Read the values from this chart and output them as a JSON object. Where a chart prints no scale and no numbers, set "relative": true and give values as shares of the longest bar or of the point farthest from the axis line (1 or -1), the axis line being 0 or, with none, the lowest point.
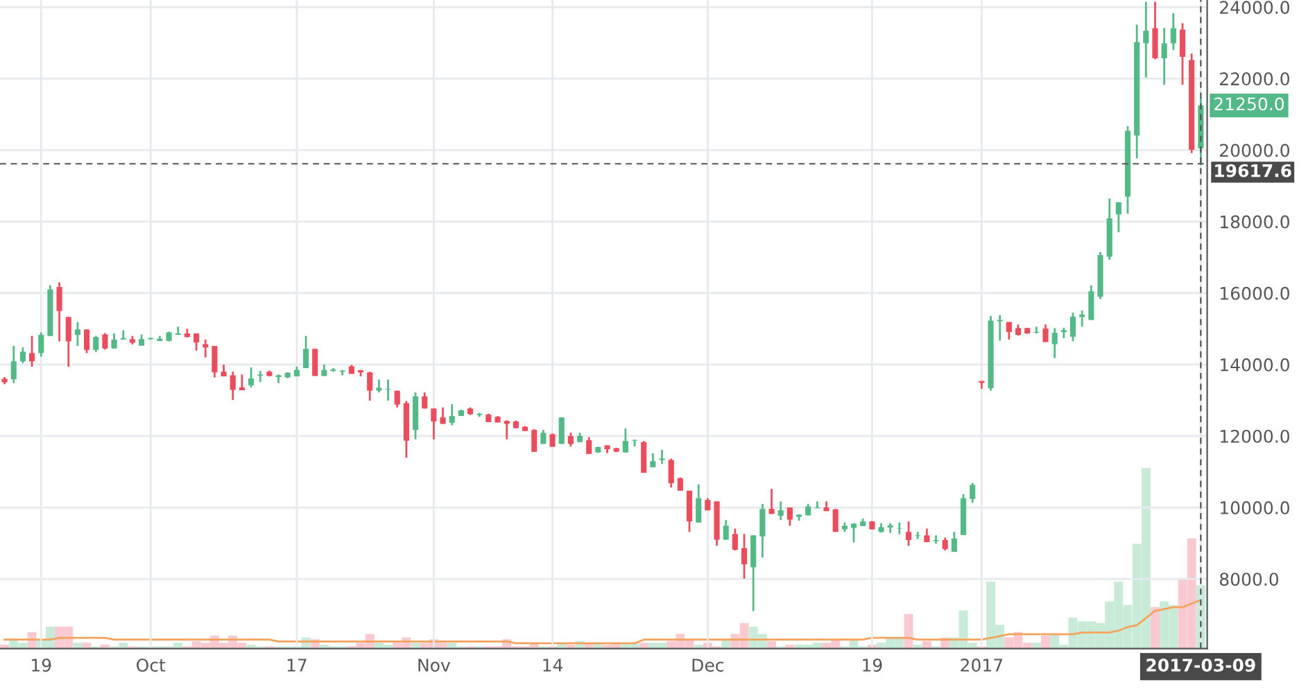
{
  "chart_data": [
    {
      "type": "candlestick",
      "categories": [
        null,
        null,
        null,
        null,
        "19",
        null,
        null,
        null,
        null,
        null,
        null,
        null,
        null,
        null,
        null,
        null,
        "Oct",
        null,
        null,
        null,
        null,
        null,
        null,
        null,
        null,
        null,
        null,
        null,
        null,
        null,
        null,
        null,
        "17",
        null,
        null,
        null,
        null,
        null,
        null,
        null,
        null,
        null,
        null,
        null,
        null,
        null,
        null,
        "Nov",
        null,
        null,
        null,
        null,
        null,
        null,
        null,
        null,
        null,
        null,
        null,
        null,
        "14",
        null,
        null,
        null,
        null,
        null,
        null,
        null,
        null,
        null,
        null,
        null,
        null,
        null,
        null,
        null,
        null,
        "Dec",
        null,
        null,
        null,
        null,
        null,
        null,
        null,
        null,
        null,
        null,
        null,
        null,
        null,
        null,
        null,
        null,
        null,
        "19",
        null,
        null,
        null,
        null,
        null,
        null,
        null,
        null,
        null,
        null,
        null,
        "2017",
        null,
        null,
        null,
        null,
        null,
        null,
        null,
        null,
        null,
        null,
        null,
        null,
        null,
        null,
        null,
        null,
        null,
        null,
        null,
        null,
        null,
        null,
        null,
        "2017-03-09"
      ],
      "ylim": [
        6050,
        24200
      ],
      "yticks": [
        {
          "value": 8000,
          "label": "8000.0"
        },
        {
          "value": 10000,
          "label": "10000.0"
        },
        {
          "value": 12000,
          "label": "12000.0"
        },
        {
          "value": 14000,
          "label": "14000.0"
        },
        {
          "value": 16000,
          "label": "16000.0"
        },
        {
          "value": 18000,
          "label": "18000.0"
        },
        {
          "value": 20000,
          "label": "20000.0"
        },
        {
          "value": 22000,
          "label": "22000.0"
        },
        {
          "value": 24000,
          "label": "24000.0"
        }
      ],
      "grid": true,
      "ref_lines": [
        {
          "axis": "y",
          "value": 19617.6,
          "label": "19617.6",
          "line_style": "dashed",
          "color": "#555555"
        },
        {
          "axis": "x",
          "value": "2017-03-09",
          "label": null,
          "line_style": "dashed",
          "color": "#555555"
        }
      ],
      "annotations": [
        {
          "text": "21250.0",
          "x": "2017-03-09",
          "y": 21250
        }
      ],
      "series": [
        {
          "ohlc": [
            [
              13600,
              13650,
              13450,
              13500
            ],
            [
              13590,
              14520,
              13480,
              14090
            ],
            [
              14090,
              14480,
              14040,
              14360
            ],
            [
              14320,
              14800,
              13940,
              14090
            ],
            [
              14320,
              14900,
              14220,
              14830
            ],
            [
              14800,
              16220,
              14800,
              16100
            ],
            [
              16170,
              16300,
              14650,
              15500
            ],
            [
              15330,
              15330,
              13940,
              14650
            ],
            [
              14830,
              15190,
              14520,
              14980
            ],
            [
              14980,
              14980,
              14320,
              14410
            ],
            [
              14410,
              14800,
              14350,
              14770
            ],
            [
              14840,
              14880,
              14420,
              14450
            ],
            [
              14450,
              14870,
              14450,
              14700
            ],
            [
              14700,
              14960,
              14700,
              14740
            ],
            [
              14710,
              14800,
              14560,
              14610
            ],
            [
              14530,
              14840,
              14530,
              14710
            ],
            [
              14710,
              14750,
              14700,
              14740
            ],
            [
              14660,
              14800,
              14660,
              14720
            ],
            [
              14660,
              14920,
              14650,
              14900
            ],
            [
              14830,
              15060,
              14830,
              14870
            ],
            [
              14870,
              15000,
              14760,
              14770
            ],
            [
              14870,
              14870,
              14390,
              14620
            ],
            [
              14570,
              14700,
              14200,
              14480
            ],
            [
              14520,
              14520,
              13640,
              13780
            ],
            [
              13800,
              14000,
              13670,
              13670
            ],
            [
              13700,
              13800,
              13010,
              13290
            ],
            [
              13360,
              13720,
              13280,
              13280
            ],
            [
              13420,
              13920,
              13360,
              13610
            ],
            [
              13690,
              13820,
              13510,
              13720
            ],
            [
              13800,
              13830,
              13670,
              13680
            ],
            [
              13650,
              13720,
              13480,
              13700
            ],
            [
              13640,
              13780,
              13620,
              13770
            ],
            [
              13670,
              13940,
              13670,
              13850
            ],
            [
              13900,
              14800,
              13900,
              14440
            ],
            [
              14440,
              14440,
              13680,
              13680
            ],
            [
              13680,
              14000,
              13680,
              13850
            ],
            [
              13820,
              13900,
              13800,
              13860
            ],
            [
              13800,
              13850,
              13700,
              13830
            ],
            [
              13950,
              13990,
              13740,
              13740
            ],
            [
              13840,
              13850,
              13670,
              13780
            ],
            [
              13780,
              13800,
              12990,
              13270
            ],
            [
              13270,
              13580,
              13220,
              13350
            ],
            [
              13300,
              13580,
              12990,
              13320
            ],
            [
              13270,
              13270,
              12800,
              12880
            ],
            [
              12920,
              12980,
              11390,
              11870
            ],
            [
              12170,
              13220,
              11910,
              13110
            ],
            [
              13110,
              13220,
              12770,
              12770
            ],
            [
              12770,
              12770,
              11910,
              12410
            ],
            [
              12520,
              12800,
              12340,
              12340
            ],
            [
              12370,
              12890,
              12300,
              12560
            ],
            [
              12560,
              12740,
              12560,
              12720
            ],
            [
              12770,
              12800,
              12590,
              12610
            ],
            [
              12590,
              12650,
              12540,
              12620
            ],
            [
              12600,
              12620,
              12390,
              12390
            ],
            [
              12540,
              12560,
              12380,
              12380
            ],
            [
              12420,
              12440,
              11910,
              12340
            ],
            [
              12410,
              12430,
              12220,
              12220
            ],
            [
              12260,
              12280,
              12140,
              12140
            ],
            [
              12170,
              12190,
              11560,
              11560
            ],
            [
              11780,
              12170,
              11780,
              12090
            ],
            [
              12050,
              12070,
              11700,
              11700
            ],
            [
              11780,
              12520,
              11780,
              12520
            ],
            [
              12000,
              12090,
              11710,
              11780
            ],
            [
              11830,
              12090,
              11830,
              12000
            ],
            [
              11880,
              11970,
              11500,
              11500
            ],
            [
              11540,
              11700,
              11530,
              11690
            ],
            [
              11740,
              11740,
              11520,
              11630
            ],
            [
              11660,
              11670,
              11550,
              11560
            ],
            [
              11540,
              12210,
              11540,
              11860
            ],
            [
              11870,
              11900,
              11710,
              11890
            ],
            [
              11830,
              11860,
              10970,
              10970
            ],
            [
              11125,
              11520,
              11125,
              11295
            ],
            [
              11330,
              11610,
              11220,
              11370
            ],
            [
              11330,
              11370,
              10560,
              10680
            ],
            [
              10820,
              10840,
              10470,
              10470
            ],
            [
              10470,
              10470,
              9320,
              9610
            ],
            [
              9580,
              10650,
              9580,
              10260
            ],
            [
              10210,
              10260,
              9920,
              9920
            ],
            [
              10170,
              10170,
              8930,
              9100
            ],
            [
              9100,
              9650,
              9100,
              9490
            ],
            [
              9260,
              9410,
              8800,
              8820
            ],
            [
              8860,
              9260,
              8010,
              8410
            ],
            [
              8330,
              9220,
              7100,
              9220
            ],
            [
              9190,
              10100,
              8600,
              9960
            ],
            [
              9960,
              10520,
              9820,
              9820
            ],
            [
              9770,
              10170,
              9650,
              9920
            ],
            [
              10000,
              10000,
              9490,
              9660
            ],
            [
              9740,
              9810,
              9630,
              9800
            ],
            [
              9780,
              10100,
              9780,
              10030
            ],
            [
              9980,
              10170,
              9980,
              10000
            ],
            [
              10000,
              10170,
              9900,
              9900
            ],
            [
              9950,
              9960,
              9320,
              9320
            ],
            [
              9390,
              9580,
              9320,
              9490
            ],
            [
              9430,
              9560,
              9020,
              9550
            ],
            [
              9480,
              9690,
              9480,
              9610
            ],
            [
              9610,
              9620,
              9380,
              9390
            ],
            [
              9320,
              9560,
              9300,
              9450
            ],
            [
              9440,
              9560,
              9290,
              9500
            ],
            [
              9400,
              9580,
              9250,
              9410
            ],
            [
              9320,
              9610,
              8930,
              9090
            ],
            [
              9200,
              9320,
              9120,
              9220
            ],
            [
              9220,
              9410,
              9030,
              9030
            ],
            [
              9060,
              9220,
              8990,
              9090
            ],
            [
              9090,
              9160,
              8800,
              8840
            ],
            [
              8760,
              9320,
              8760,
              9130
            ],
            [
              9230,
              10370,
              9230,
              10260
            ],
            [
              10240,
              10690,
              10130,
              10630
            ],
            [
              13540,
              13540,
              13320,
              13490
            ],
            [
              13340,
              15360,
              13270,
              15230
            ],
            [
              15210,
              15380,
              14670,
              15250
            ],
            [
              15190,
              15190,
              14700,
              14910
            ],
            [
              15020,
              15120,
              14810,
              14830
            ],
            [
              15020,
              15030,
              14860,
              14870
            ],
            [
              14890,
              15060,
              14870,
              14910
            ],
            [
              15010,
              15120,
              14630,
              14630
            ],
            [
              14570,
              15020,
              14180,
              14890
            ],
            [
              14910,
              15030,
              14740,
              14960
            ],
            [
              14780,
              15450,
              14650,
              15340
            ],
            [
              15330,
              15510,
              15060,
              15400
            ],
            [
              15250,
              16220,
              15250,
              16050
            ],
            [
              15900,
              17150,
              15830,
              17060
            ],
            [
              17020,
              18650,
              16930,
              18090
            ],
            [
              18200,
              18540,
              17700,
              18540
            ],
            [
              18700,
              20670,
              18220,
              20540
            ],
            [
              20410,
              23510,
              19770,
              23020
            ],
            [
              22990,
              24150,
              22030,
              23340
            ],
            [
              23410,
              24150,
              22540,
              22570
            ],
            [
              22570,
              23420,
              21830,
              22990
            ],
            [
              22990,
              23830,
              22800,
              23410
            ],
            [
              23370,
              23550,
              21830,
              22610
            ],
            [
              22520,
              22700,
              19920,
              20010
            ],
            [
              20050,
              21450,
              19580,
              21250
            ]
          ],
          "colors": [
            "#eb4d5c",
            "#53b987",
            "#53b987",
            "#eb4d5c",
            "#53b987",
            "#53b987",
            "#eb4d5c",
            "#eb4d5c",
            "#53b987",
            "#eb4d5c",
            "#53b987",
            "#eb4d5c",
            "#53b987",
            "#53b987",
            "#eb4d5c",
            "#53b987",
            "#53b987",
            "#53b987",
            "#53b987",
            "#53b987",
            "#eb4d5c",
            "#eb4d5c",
            "#eb4d5c",
            "#eb4d5c",
            "#eb4d5c",
            "#eb4d5c",
            "#eb4d5c",
            "#53b987",
            "#53b987",
            "#eb4d5c",
            "#53b987",
            "#53b987",
            "#53b987",
            "#53b987",
            "#eb4d5c",
            "#53b987",
            "#53b987",
            "#53b987",
            "#eb4d5c",
            "#eb4d5c",
            "#eb4d5c",
            "#53b987",
            "#53b987",
            "#eb4d5c",
            "#eb4d5c",
            "#53b987",
            "#eb4d5c",
            "#eb4d5c",
            "#eb4d5c",
            "#53b987",
            "#53b987",
            "#eb4d5c",
            "#53b987",
            "#eb4d5c",
            "#eb4d5c",
            "#eb4d5c",
            "#eb4d5c",
            "#eb4d5c",
            "#eb4d5c",
            "#53b987",
            "#eb4d5c",
            "#53b987",
            "#eb4d5c",
            "#53b987",
            "#eb4d5c",
            "#53b987",
            "#eb4d5c",
            "#eb4d5c",
            "#53b987",
            "#53b987",
            "#eb4d5c",
            "#53b987",
            "#53b987",
            "#eb4d5c",
            "#eb4d5c",
            "#eb4d5c",
            "#53b987",
            "#eb4d5c",
            "#eb4d5c",
            "#53b987",
            "#eb4d5c",
            "#eb4d5c",
            "#53b987",
            "#53b987",
            "#eb4d5c",
            "#53b987",
            "#eb4d5c",
            "#53b987",
            "#53b987",
            "#53b987",
            "#eb4d5c",
            "#eb4d5c",
            "#53b987",
            "#53b987",
            "#53b987",
            "#eb4d5c",
            "#53b987",
            "#53b987",
            "#53b987",
            "#eb4d5c",
            "#53b987",
            "#eb4d5c",
            "#53b987",
            "#eb4d5c",
            "#53b987",
            "#53b987",
            "#53b987",
            "#eb4d5c",
            "#53b987",
            "#53b987",
            "#eb4d5c",
            "#eb4d5c",
            "#eb4d5c",
            "#53b987",
            "#eb4d5c",
            "#53b987",
            "#53b987",
            "#53b987",
            "#53b987",
            "#53b987",
            "#53b987",
            "#53b987",
            "#53b987",
            "#53b987",
            "#53b987",
            "#53b987",
            "#eb4d5c",
            "#53b987",
            "#53b987",
            "#eb4d5c",
            "#eb4d5c",
            "#53b987"
          ]
        }
      ]
    },
    {
      "type": "bar",
      "relative": true,
      "categories": [
        null,
        null,
        null,
        null,
        null,
        null,
        null,
        null,
        null,
        null,
        null,
        null,
        null,
        null,
        null,
        null,
        null,
        null,
        null,
        null,
        null,
        null,
        null,
        null,
        null,
        null,
        null,
        null,
        null,
        null,
        null,
        null,
        null,
        null,
        null,
        null,
        null,
        null,
        null,
        null,
        null,
        null,
        null,
        null,
        null,
        null,
        null,
        null,
        null,
        null,
        null,
        null,
        null,
        null,
        null,
        null,
        null,
        null,
        null,
        null,
        null,
        null,
        null,
        null,
        null,
        null,
        null,
        null,
        null,
        null,
        null,
        null,
        null,
        null,
        null,
        null,
        null,
        null,
        null,
        null,
        null,
        null,
        null,
        null,
        null,
        null,
        null,
        null,
        null,
        null,
        null,
        null,
        null,
        null,
        null,
        null,
        null,
        null,
        null,
        null,
        null,
        null,
        null,
        null,
        null,
        null,
        null,
        null,
        null,
        null,
        null,
        null,
        null,
        null,
        null,
        null,
        null,
        null,
        null,
        null,
        null,
        null,
        null,
        null,
        null,
        null,
        null,
        null,
        null,
        null,
        null,
        null
      ],
      "series": [
        {
          "values": [
            0.02,
            0.05,
            0.03,
            0.09,
            0.05,
            0.12,
            0.12,
            0.12,
            0.03,
            0.03,
            0.01,
            0.02,
            0.01,
            0.03,
            0.01,
            0.01,
            0.01,
            0.01,
            0.01,
            0.03,
            0.01,
            0.04,
            0.03,
            0.07,
            0.03,
            0.07,
            0.03,
            0.02,
            0.01,
            0.01,
            0.01,
            0.01,
            0.01,
            0.06,
            0.05,
            0.02,
            0.01,
            0.01,
            0.01,
            0.03,
            0.08,
            0.03,
            0.02,
            0.03,
            0.06,
            0.03,
            0.03,
            0.05,
            0.03,
            0.03,
            0.01,
            0.01,
            0.01,
            0.01,
            0.01,
            0.05,
            0.01,
            0.01,
            0.03,
            0.01,
            0.01,
            0.03,
            0.02,
            0.04,
            0.03,
            0.03,
            0.02,
            0.03,
            0.03,
            0.03,
            0.03,
            0.03,
            0.03,
            0.04,
            0.08,
            0.05,
            0.02,
            0.03,
            0.01,
            0.05,
            0.08,
            0.14,
            0.12,
            0.08,
            0.04,
            0.01,
            0.02,
            0.02,
            0.02,
            0.03,
            0.03,
            0.05,
            0.01,
            0.05,
            0.01,
            0.02,
            0.03,
            0.06,
            0.06,
            0.19,
            0.02,
            0.04,
            0.01,
            0.06,
            0.06,
            0.21,
            0.03,
            0.01,
            0.37,
            0.13,
            0.06,
            0.09,
            0.03,
            0.03,
            0.07,
            0.08,
            0.02,
            0.17,
            0.15,
            0.15,
            0.14,
            0.26,
            0.37,
            0.24,
            0.58,
            1,
            0.23,
            0.26,
            0.24,
            0.39,
            0.61,
            0.35
          ],
          "colors": [
            "#f9c9d0",
            "#c8ebd8",
            "#c8ebd8",
            "#f9c9d0",
            "#c8ebd8",
            "#c8ebd8",
            "#f9c9d0",
            "#f9c9d0",
            "#c8ebd8",
            "#f9c9d0",
            "#c8ebd8",
            "#f9c9d0",
            "#c8ebd8",
            "#c8ebd8",
            "#f9c9d0",
            "#c8ebd8",
            "#c8ebd8",
            "#c8ebd8",
            "#c8ebd8",
            "#c8ebd8",
            "#f9c9d0",
            "#f9c9d0",
            "#f9c9d0",
            "#f9c9d0",
            "#f9c9d0",
            "#f9c9d0",
            "#f9c9d0",
            "#c8ebd8",
            "#c8ebd8",
            "#f9c9d0",
            "#c8ebd8",
            "#c8ebd8",
            "#c8ebd8",
            "#c8ebd8",
            "#f9c9d0",
            "#c8ebd8",
            "#c8ebd8",
            "#c8ebd8",
            "#f9c9d0",
            "#f9c9d0",
            "#f9c9d0",
            "#c8ebd8",
            "#c8ebd8",
            "#f9c9d0",
            "#f9c9d0",
            "#c8ebd8",
            "#f9c9d0",
            "#f9c9d0",
            "#f9c9d0",
            "#c8ebd8",
            "#c8ebd8",
            "#f9c9d0",
            "#c8ebd8",
            "#f9c9d0",
            "#f9c9d0",
            "#f9c9d0",
            "#f9c9d0",
            "#f9c9d0",
            "#f9c9d0",
            "#c8ebd8",
            "#f9c9d0",
            "#c8ebd8",
            "#f9c9d0",
            "#c8ebd8",
            "#f9c9d0",
            "#c8ebd8",
            "#f9c9d0",
            "#f9c9d0",
            "#c8ebd8",
            "#c8ebd8",
            "#f9c9d0",
            "#c8ebd8",
            "#c8ebd8",
            "#f9c9d0",
            "#f9c9d0",
            "#f9c9d0",
            "#c8ebd8",
            "#f9c9d0",
            "#f9c9d0",
            "#c8ebd8",
            "#f9c9d0",
            "#f9c9d0",
            "#c8ebd8",
            "#c8ebd8",
            "#f9c9d0",
            "#c8ebd8",
            "#f9c9d0",
            "#c8ebd8",
            "#c8ebd8",
            "#c8ebd8",
            "#f9c9d0",
            "#f9c9d0",
            "#c8ebd8",
            "#c8ebd8",
            "#c8ebd8",
            "#f9c9d0",
            "#c8ebd8",
            "#c8ebd8",
            "#c8ebd8",
            "#f9c9d0",
            "#c8ebd8",
            "#f9c9d0",
            "#c8ebd8",
            "#f9c9d0",
            "#c8ebd8",
            "#c8ebd8",
            "#c8ebd8",
            "#f9c9d0",
            "#c8ebd8",
            "#c8ebd8",
            "#f9c9d0",
            "#f9c9d0",
            "#f9c9d0",
            "#c8ebd8",
            "#f9c9d0",
            "#c8ebd8",
            "#c8ebd8",
            "#c8ebd8",
            "#c8ebd8",
            "#c8ebd8",
            "#c8ebd8",
            "#c8ebd8",
            "#c8ebd8",
            "#c8ebd8",
            "#c8ebd8",
            "#c8ebd8",
            "#f9c9d0",
            "#c8ebd8",
            "#c8ebd8",
            "#f9c9d0",
            "#f9c9d0",
            "#c8ebd8"
          ]
        },
        {
          "type": "line",
          "color": "#f5a35c",
          "values": [
            0.05,
            0.05,
            0.05,
            0.05,
            0.05,
            0.05,
            0.06,
            0.06,
            0.06,
            0.06,
            0.06,
            0.06,
            0.05,
            0.05,
            0.05,
            0.05,
            0.05,
            0.05,
            0.05,
            0.05,
            0.05,
            0.05,
            0.05,
            0.05,
            0.05,
            0.05,
            0.05,
            0.05,
            0.05,
            0.05,
            0.04,
            0.04,
            0.04,
            0.04,
            0.04,
            0.04,
            0.04,
            0.04,
            0.04,
            0.04,
            0.04,
            0.04,
            0.04,
            0.04,
            0.04,
            0.04,
            0.04,
            0.04,
            0.04,
            0.04,
            0.04,
            0.04,
            0.04,
            0.04,
            0.04,
            0.04,
            0.03,
            0.03,
            0.03,
            0.03,
            0.03,
            0.03,
            0.03,
            0.03,
            0.03,
            0.03,
            0.03,
            0.03,
            0.03,
            0.03,
            0.05,
            0.05,
            0.05,
            0.05,
            0.05,
            0.05,
            0.05,
            0.05,
            0.05,
            0.05,
            0.05,
            0.05,
            0.05,
            0.05,
            0.05,
            0.05,
            0.05,
            0.05,
            0.05,
            0.05,
            0.05,
            0.05,
            0.05,
            0.05,
            0.05,
            0.06,
            0.06,
            0.06,
            0.06,
            0.06,
            0.05,
            0.05,
            0.05,
            0.05,
            0.05,
            0.05,
            0.05,
            0.05,
            0.06,
            0.07,
            0.08,
            0.08,
            0.08,
            0.08,
            0.08,
            0.08,
            0.08,
            0.08,
            0.09,
            0.09,
            0.09,
            0.09,
            0.1,
            0.12,
            0.13,
            0.17,
            0.21,
            0.22,
            0.23,
            0.23,
            0.25,
            0.27
          ]
        }
      ]
    }
  ]
}
